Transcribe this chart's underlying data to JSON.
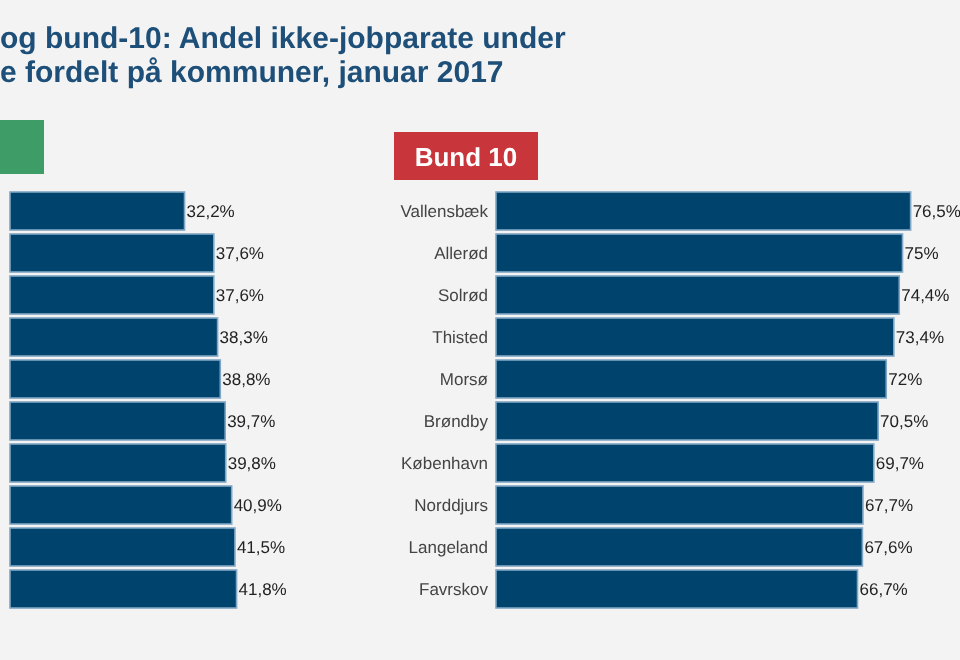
{
  "chart_data": [
    {
      "type": "bar",
      "orientation": "horizontal",
      "title": "og bund-10: Andel ikke-jobparate under\ne fordelt på kommuner, januar 2017",
      "categories": [
        null,
        null,
        null,
        null,
        null,
        null,
        null,
        null,
        null,
        null
      ],
      "values": [
        32.2,
        37.6,
        37.6,
        38.3,
        38.8,
        39.7,
        39.8,
        40.9,
        41.5,
        41.8
      ],
      "value_labels": [
        "32,2%",
        "37,6%",
        "37,6%",
        "38,3%",
        "38,8%",
        "39,7%",
        "39,8%",
        "40,9%",
        "41,5%",
        "41,8%"
      ],
      "color": "#00446e"
    },
    {
      "type": "bar",
      "orientation": "horizontal",
      "title": "Bund 10",
      "categories": [
        "Vallensbæk",
        "Allerød",
        "Solrød",
        "Thisted",
        "Morsø",
        "Brøndby",
        "København",
        "Norddjurs",
        "Langeland",
        "Favrskov"
      ],
      "values": [
        76.5,
        75,
        74.4,
        73.4,
        72,
        70.5,
        69.7,
        67.7,
        67.6,
        66.7
      ],
      "value_labels": [
        "76,5%",
        "75%",
        "74,4%",
        "73,4%",
        "72%",
        "70,5%",
        "69,7%",
        "67,7%",
        "67,6%",
        "66,7%"
      ],
      "color": "#00446e"
    }
  ]
}
